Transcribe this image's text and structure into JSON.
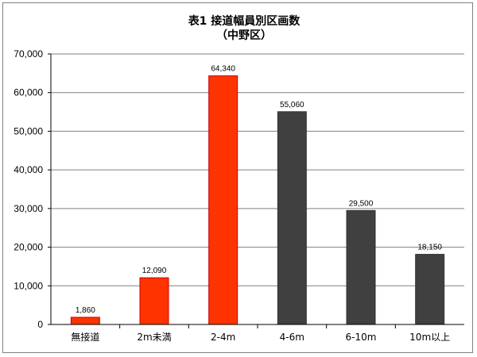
{
  "chart_data": {
    "type": "bar",
    "title": "表1 接道幅員別区画数",
    "subtitle": "（中野区）",
    "categories": [
      "無接道",
      "2m未満",
      "2-4m",
      "4-6m",
      "6-10m",
      "10m以上"
    ],
    "values": [
      1860,
      12090,
      64340,
      55060,
      29500,
      18150
    ],
    "data_labels": [
      "1,860",
      "12,090",
      "64,340",
      "55,060",
      "29,500",
      "18,150"
    ],
    "bar_colors": [
      "#ff3300",
      "#ff3300",
      "#ff3300",
      "#404040",
      "#404040",
      "#404040"
    ],
    "bar_edge_color": "#cc0000",
    "ylim": [
      0,
      70000
    ],
    "yticks": [
      0,
      10000,
      20000,
      30000,
      40000,
      50000,
      60000,
      70000
    ],
    "ytick_labels": [
      "0",
      "10,000",
      "20,000",
      "30,000",
      "40,000",
      "50,000",
      "60,000",
      "70,000"
    ],
    "grid": true,
    "legend": "none"
  }
}
